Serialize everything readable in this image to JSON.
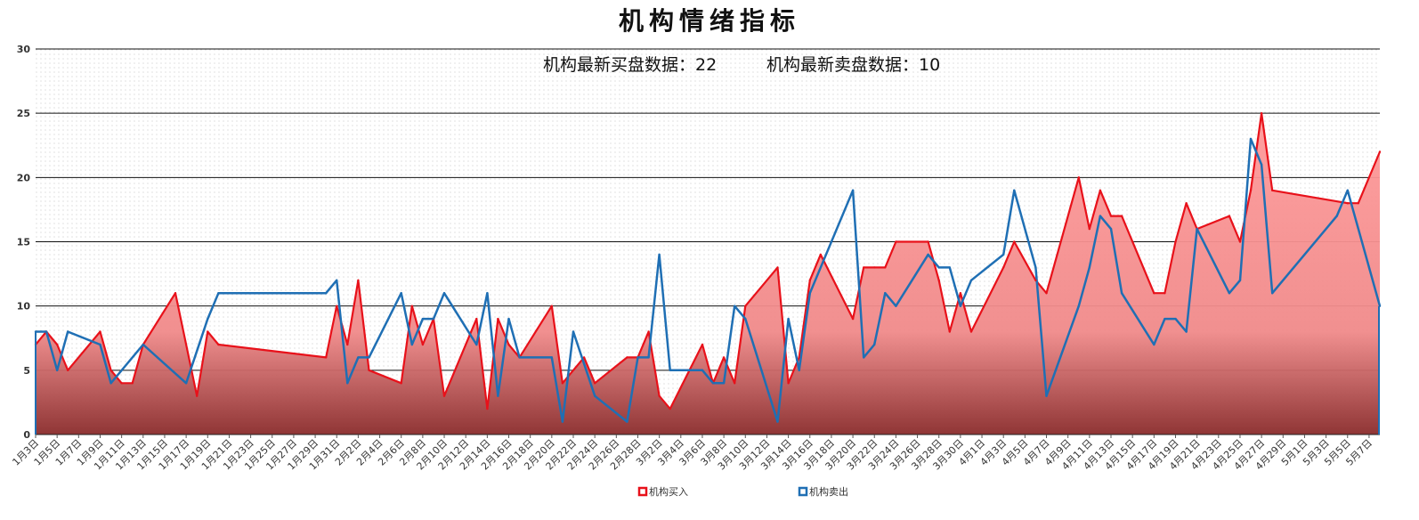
{
  "title": "机构情绪指标",
  "stats": {
    "buy_text": "机构最新买盘数据：22",
    "sell_text": "机构最新卖盘数据：10"
  },
  "legend": [
    {
      "label": "机构买入",
      "color": "#e8111a"
    },
    {
      "label": "机构卖出",
      "color": "#1f6fb4"
    }
  ],
  "chart_data": {
    "type": "area",
    "title": "机构情绪指标",
    "ylim": [
      0,
      30
    ],
    "yticks": [
      0,
      5,
      10,
      15,
      20,
      25,
      30
    ],
    "grid": true,
    "legend_position": "bottom-center",
    "x_tick_labels": [
      "1月3日",
      "1月5日",
      "1月7日",
      "1月9日",
      "1月11日",
      "1月13日",
      "1月15日",
      "1月17日",
      "1月19日",
      "1月21日",
      "1月23日",
      "1月25日",
      "1月27日",
      "1月29日",
      "1月31日",
      "2月2日",
      "2月4日",
      "2月6日",
      "2月8日",
      "2月10日",
      "2月12日",
      "2月14日",
      "2月16日",
      "2月18日",
      "2月20日",
      "2月22日",
      "2月24日",
      "2月26日",
      "2月28日",
      "3月2日",
      "3月4日",
      "3月6日",
      "3月8日",
      "3月10日",
      "3月12日",
      "3月14日",
      "3月16日",
      "3月18日",
      "3月20日",
      "3月22日",
      "3月24日",
      "3月26日",
      "3月28日",
      "3月30日",
      "4月1日",
      "4月3日",
      "4月5日",
      "4月7日",
      "4月9日",
      "4月11日",
      "4月13日",
      "4月15日",
      "4月17日",
      "4月19日",
      "4月21日",
      "4月23日",
      "4月25日",
      "4月27日",
      "4月29日",
      "5月1日",
      "5月3日",
      "5月5日",
      "5月7日"
    ],
    "series": [
      {
        "name": "机构买入",
        "color": "#e8111a",
        "points": [
          [
            "1月3日",
            7
          ],
          [
            "1月4日",
            8
          ],
          [
            "1月5日",
            7
          ],
          [
            "1月6日",
            5
          ],
          [
            "1月9日",
            8
          ],
          [
            "1月10日",
            5
          ],
          [
            "1月11日",
            4
          ],
          [
            "1月12日",
            4
          ],
          [
            "1月13日",
            7
          ],
          [
            "1月16日",
            11
          ],
          [
            "1月18日",
            3
          ],
          [
            "1月19日",
            8
          ],
          [
            "1月20日",
            7
          ],
          [
            "1月30日",
            6
          ],
          [
            "1月31日",
            10
          ],
          [
            "2月1日",
            7
          ],
          [
            "2月2日",
            12
          ],
          [
            "2月3日",
            5
          ],
          [
            "2月6日",
            4
          ],
          [
            "2月7日",
            10
          ],
          [
            "2月8日",
            7
          ],
          [
            "2月9日",
            9
          ],
          [
            "2月10日",
            3
          ],
          [
            "2月13日",
            9
          ],
          [
            "2月14日",
            2
          ],
          [
            "2月15日",
            9
          ],
          [
            "2月16日",
            7
          ],
          [
            "2月17日",
            6
          ],
          [
            "2月20日",
            10
          ],
          [
            "2月21日",
            4
          ],
          [
            "2月23日",
            6
          ],
          [
            "2月24日",
            4
          ],
          [
            "2月27日",
            6
          ],
          [
            "2月28日",
            6
          ],
          [
            "3月1日",
            8
          ],
          [
            "3月2日",
            3
          ],
          [
            "3月3日",
            2
          ],
          [
            "3月6日",
            7
          ],
          [
            "3月7日",
            4
          ],
          [
            "3月8日",
            6
          ],
          [
            "3月9日",
            4
          ],
          [
            "3月10日",
            10
          ],
          [
            "3月13日",
            13
          ],
          [
            "3月14日",
            4
          ],
          [
            "3月15日",
            6
          ],
          [
            "3月16日",
            12
          ],
          [
            "3月17日",
            14
          ],
          [
            "3月20日",
            9
          ],
          [
            "3月21日",
            13
          ],
          [
            "3月22日",
            13
          ],
          [
            "3月23日",
            13
          ],
          [
            "3月24日",
            15
          ],
          [
            "3月27日",
            15
          ],
          [
            "3月28日",
            12
          ],
          [
            "3月29日",
            8
          ],
          [
            "3月30日",
            11
          ],
          [
            "3月31日",
            8
          ],
          [
            "4月3日",
            13
          ],
          [
            "4月4日",
            15
          ],
          [
            "4月6日",
            12
          ],
          [
            "4月7日",
            11
          ],
          [
            "4月10日",
            20
          ],
          [
            "4月11日",
            16
          ],
          [
            "4月12日",
            19
          ],
          [
            "4月13日",
            17
          ],
          [
            "4月14日",
            17
          ],
          [
            "4月17日",
            11
          ],
          [
            "4月18日",
            11
          ],
          [
            "4月19日",
            15
          ],
          [
            "4月20日",
            18
          ],
          [
            "4月21日",
            16
          ],
          [
            "4月24日",
            17
          ],
          [
            "4月25日",
            15
          ],
          [
            "4月26日",
            19
          ],
          [
            "4月27日",
            25
          ],
          [
            "4月28日",
            19
          ],
          [
            "5月5日",
            18
          ],
          [
            "5月6日",
            18
          ],
          [
            "5月8日",
            22
          ]
        ]
      },
      {
        "name": "机构卖出",
        "color": "#1f6fb4",
        "points": [
          [
            "1月3日",
            8
          ],
          [
            "1月4日",
            8
          ],
          [
            "1月5日",
            5
          ],
          [
            "1月6日",
            8
          ],
          [
            "1月9日",
            7
          ],
          [
            "1月10日",
            4
          ],
          [
            "1月13日",
            7
          ],
          [
            "1月17日",
            4
          ],
          [
            "1月19日",
            9
          ],
          [
            "1月20日",
            11
          ],
          [
            "1月30日",
            11
          ],
          [
            "1月31日",
            12
          ],
          [
            "2月1日",
            4
          ],
          [
            "2月2日",
            6
          ],
          [
            "2月3日",
            6
          ],
          [
            "2月6日",
            11
          ],
          [
            "2月7日",
            7
          ],
          [
            "2月8日",
            9
          ],
          [
            "2月9日",
            9
          ],
          [
            "2月10日",
            11
          ],
          [
            "2月13日",
            7
          ],
          [
            "2月14日",
            11
          ],
          [
            "2月15日",
            3
          ],
          [
            "2月16日",
            9
          ],
          [
            "2月17日",
            6
          ],
          [
            "2月20日",
            6
          ],
          [
            "2月21日",
            1
          ],
          [
            "2月22日",
            8
          ],
          [
            "2月24日",
            3
          ],
          [
            "2月27日",
            1
          ],
          [
            "2月28日",
            6
          ],
          [
            "3月1日",
            6
          ],
          [
            "3月2日",
            14
          ],
          [
            "3月3日",
            5
          ],
          [
            "3月6日",
            5
          ],
          [
            "3月7日",
            4
          ],
          [
            "3月8日",
            4
          ],
          [
            "3月9日",
            10
          ],
          [
            "3月10日",
            9
          ],
          [
            "3月13日",
            1
          ],
          [
            "3月14日",
            9
          ],
          [
            "3月15日",
            5
          ],
          [
            "3月16日",
            11
          ],
          [
            "3月20日",
            19
          ],
          [
            "3月21日",
            6
          ],
          [
            "3月22日",
            7
          ],
          [
            "3月23日",
            11
          ],
          [
            "3月24日",
            10
          ],
          [
            "3月27日",
            14
          ],
          [
            "3月28日",
            13
          ],
          [
            "3月29日",
            13
          ],
          [
            "3月30日",
            10
          ],
          [
            "3月31日",
            12
          ],
          [
            "4月3日",
            14
          ],
          [
            "4月4日",
            19
          ],
          [
            "4月6日",
            13
          ],
          [
            "4月7日",
            3
          ],
          [
            "4月10日",
            10
          ],
          [
            "4月11日",
            13
          ],
          [
            "4月12日",
            17
          ],
          [
            "4月13日",
            16
          ],
          [
            "4月14日",
            11
          ],
          [
            "4月17日",
            7
          ],
          [
            "4月18日",
            9
          ],
          [
            "4月19日",
            9
          ],
          [
            "4月20日",
            8
          ],
          [
            "4月21日",
            16
          ],
          [
            "4月24日",
            11
          ],
          [
            "4月25日",
            12
          ],
          [
            "4月26日",
            23
          ],
          [
            "4月27日",
            21
          ],
          [
            "4月28日",
            11
          ],
          [
            "5月4日",
            17
          ],
          [
            "5月5日",
            19
          ],
          [
            "5月8日",
            10
          ]
        ]
      }
    ]
  }
}
